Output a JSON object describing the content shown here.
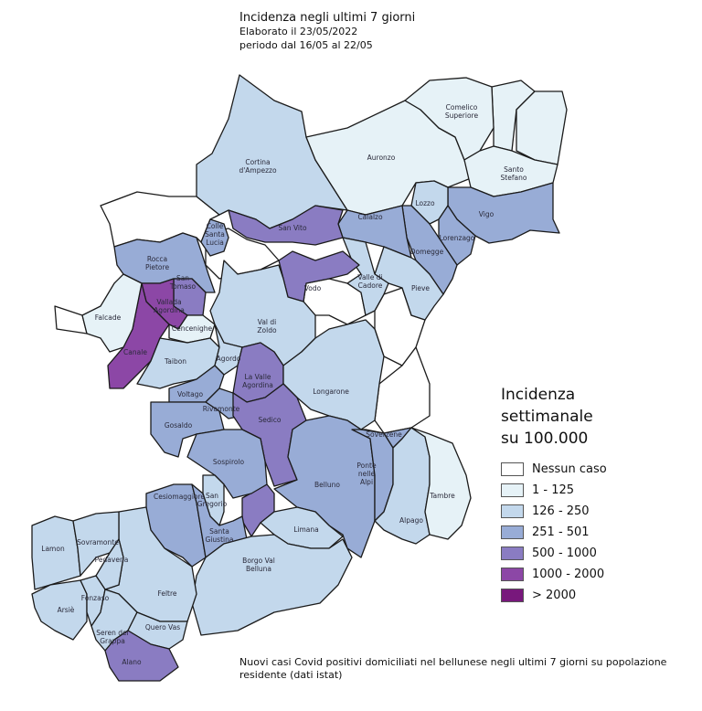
{
  "header": {
    "title": "Incidenza negli ultimi 7 giorni",
    "subtitle1": "Elaborato il 23/05/2022",
    "subtitle2": "periodo dal 16/05 al 22/05"
  },
  "legend": {
    "title1": "Incidenza",
    "title2": "settimanale",
    "title3": "su 100.000",
    "items": [
      {
        "label": "Nessun caso",
        "color": "#ffffff"
      },
      {
        "label": "1 - 125",
        "color": "#e6f2f7"
      },
      {
        "label": "126 - 250",
        "color": "#c3d8ec"
      },
      {
        "label": "251 - 501",
        "color": "#98acd6"
      },
      {
        "label": "500 - 1000",
        "color": "#8a7cc2"
      },
      {
        "label": "1000 - 2000",
        "color": "#8c47a6"
      },
      {
        "label": "> 2000",
        "color": "#78187c"
      }
    ]
  },
  "municipalities": [
    {
      "name": "Cortina d'Ampezzo",
      "category": 2
    },
    {
      "name": "Auronzo",
      "category": 1
    },
    {
      "name": "Comelico Superiore",
      "category": 1
    },
    {
      "name": "Santo Stefano",
      "category": 1
    },
    {
      "name": "Vigo",
      "category": 3
    },
    {
      "name": "Lozzo",
      "category": 2
    },
    {
      "name": "Lorenzago",
      "category": 3
    },
    {
      "name": "Domegge",
      "category": 3
    },
    {
      "name": "Calalzo",
      "category": 3
    },
    {
      "name": "Pieve",
      "category": 2
    },
    {
      "name": "Valle di Cadore",
      "category": 2
    },
    {
      "name": "Vodo",
      "category": 4
    },
    {
      "name": "San Vito",
      "category": 4
    },
    {
      "name": "Colle Santa Lucia",
      "category": 3
    },
    {
      "name": "Rocca Pietore",
      "category": 3
    },
    {
      "name": "San Tomaso",
      "category": 4
    },
    {
      "name": "Vallada Agordina",
      "category": 5
    },
    {
      "name": "Canale",
      "category": 5
    },
    {
      "name": "Falcade",
      "category": 1
    },
    {
      "name": "Cencenighe",
      "category": 1
    },
    {
      "name": "Taibon",
      "category": 2
    },
    {
      "name": "Val di Zoldo",
      "category": 2
    },
    {
      "name": "Agordo",
      "category": 2
    },
    {
      "name": "La Valle Agordina",
      "category": 4
    },
    {
      "name": "Longarone",
      "category": 2
    },
    {
      "name": "Voltago",
      "category": 3
    },
    {
      "name": "Rivamonte",
      "category": 3
    },
    {
      "name": "Gosaldo",
      "category": 3
    },
    {
      "name": "Sedico",
      "category": 4
    },
    {
      "name": "Sospirolo",
      "category": 3
    },
    {
      "name": "Belluno",
      "category": 3
    },
    {
      "name": "Ponte nelle Alpi",
      "category": 3
    },
    {
      "name": "Soverzene",
      "category": 3
    },
    {
      "name": "Alpago",
      "category": 2
    },
    {
      "name": "Tambre",
      "category": 1
    },
    {
      "name": "Cesiomaggiore",
      "category": 3
    },
    {
      "name": "San Gregorio",
      "category": 2
    },
    {
      "name": "Santa Giustina",
      "category": 3
    },
    {
      "name": "Limana",
      "category": 2
    },
    {
      "name": "Borgo Val Belluna",
      "category": 2
    },
    {
      "name": "Feltre",
      "category": 2
    },
    {
      "name": "Lamon",
      "category": 2
    },
    {
      "name": "Sovramonte",
      "category": 2
    },
    {
      "name": "Pedavena",
      "category": 2
    },
    {
      "name": "Arsiè",
      "category": 2
    },
    {
      "name": "Fonzaso",
      "category": 2
    },
    {
      "name": "Seren del Grappa",
      "category": 2
    },
    {
      "name": "Quero Vas",
      "category": 2
    },
    {
      "name": "Alano",
      "category": 4
    }
  ],
  "unlabeled_regions": [
    {
      "category": 1
    },
    {
      "category": 1
    },
    {
      "category": 0
    },
    {
      "category": 0
    },
    {
      "category": 0
    },
    {
      "category": 0
    },
    {
      "category": 0
    },
    {
      "category": 0
    },
    {
      "category": 4
    }
  ],
  "footnote": "Nuovi casi Covid positivi domiciliati nel bellunese negli ultimi 7 giorni su popolazione residente (dati istat)"
}
